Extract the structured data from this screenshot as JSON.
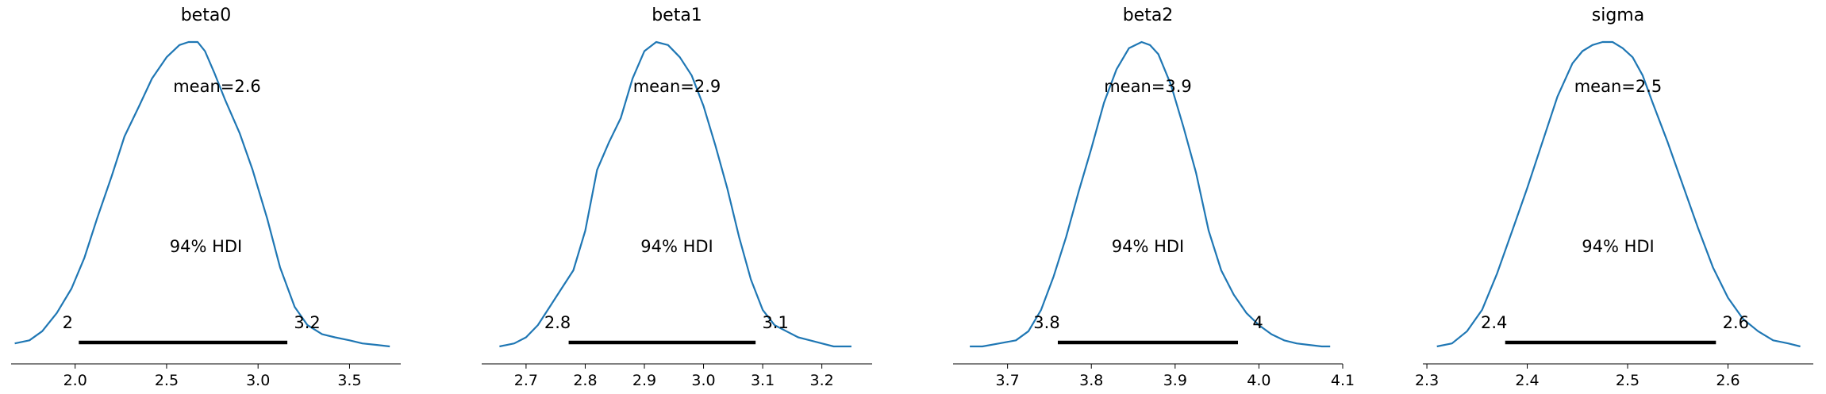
{
  "chart_data": [
    {
      "type": "area",
      "title": "beta0",
      "mean_label": "mean=2.6",
      "hdi_label": "94% HDI",
      "hdi": [
        2.02,
        3.16
      ],
      "hdi_low_label": "2",
      "hdi_high_label": "3.2",
      "xlim": [
        1.65,
        3.78
      ],
      "xticks": [
        2.0,
        2.5,
        3.0,
        3.5
      ],
      "xtick_labels": [
        "2.0",
        "2.5",
        "3.0",
        "3.5"
      ],
      "color": "#1f77b4",
      "density": {
        "x": [
          1.67,
          1.75,
          1.82,
          1.9,
          1.98,
          2.05,
          2.12,
          2.2,
          2.27,
          2.35,
          2.42,
          2.5,
          2.57,
          2.62,
          2.67,
          2.71,
          2.76,
          2.82,
          2.9,
          2.97,
          3.05,
          3.12,
          3.2,
          3.27,
          3.35,
          3.42,
          3.5,
          3.57,
          3.65,
          3.72
        ],
        "y": [
          0.01,
          0.02,
          0.05,
          0.11,
          0.19,
          0.29,
          0.42,
          0.56,
          0.69,
          0.79,
          0.88,
          0.95,
          0.99,
          1.0,
          1.0,
          0.97,
          0.9,
          0.81,
          0.7,
          0.58,
          0.42,
          0.26,
          0.13,
          0.07,
          0.04,
          0.03,
          0.02,
          0.01,
          0.005,
          0.0
        ]
      }
    },
    {
      "type": "area",
      "title": "beta1",
      "mean_label": "mean=2.9",
      "hdi_label": "94% HDI",
      "hdi": [
        2.772,
        3.088
      ],
      "hdi_low_label": "2.8",
      "hdi_high_label": "3.1",
      "xlim": [
        2.625,
        3.285
      ],
      "xticks": [
        2.7,
        2.8,
        2.9,
        3.0,
        3.1,
        3.2
      ],
      "xtick_labels": [
        "2.7",
        "2.8",
        "2.9",
        "3.0",
        "3.1",
        "3.2"
      ],
      "color": "#1f77b4",
      "density": {
        "x": [
          2.655,
          2.68,
          2.7,
          2.72,
          2.74,
          2.76,
          2.78,
          2.8,
          2.82,
          2.84,
          2.86,
          2.88,
          2.9,
          2.92,
          2.94,
          2.96,
          2.98,
          3.0,
          3.02,
          3.04,
          3.06,
          3.08,
          3.1,
          3.12,
          3.14,
          3.16,
          3.18,
          3.2,
          3.22,
          3.25
        ],
        "y": [
          0.0,
          0.01,
          0.03,
          0.07,
          0.13,
          0.19,
          0.25,
          0.38,
          0.58,
          0.67,
          0.75,
          0.88,
          0.97,
          1.0,
          0.99,
          0.95,
          0.89,
          0.79,
          0.66,
          0.52,
          0.36,
          0.22,
          0.12,
          0.07,
          0.05,
          0.03,
          0.02,
          0.01,
          0.0,
          0.0
        ]
      }
    },
    {
      "type": "area",
      "title": "beta2",
      "mean_label": "mean=3.9",
      "hdi_label": "94% HDI",
      "hdi": [
        3.76,
        3.975
      ],
      "hdi_low_label": "3.8",
      "hdi_high_label": "4",
      "xlim": [
        3.635,
        4.1
      ],
      "xticks": [
        3.7,
        3.8,
        3.9,
        4.0,
        4.1
      ],
      "xtick_labels": [
        "3.7",
        "3.8",
        "3.9",
        "4.0",
        "4.1"
      ],
      "color": "#1f77b4",
      "density": {
        "x": [
          3.655,
          3.67,
          3.69,
          3.71,
          3.725,
          3.74,
          3.755,
          3.77,
          3.785,
          3.8,
          3.815,
          3.83,
          3.845,
          3.86,
          3.87,
          3.88,
          3.895,
          3.91,
          3.925,
          3.94,
          3.955,
          3.97,
          3.985,
          4.0,
          4.015,
          4.03,
          4.045,
          4.06,
          4.075,
          4.085
        ],
        "y": [
          0.0,
          0.0,
          0.01,
          0.02,
          0.05,
          0.12,
          0.23,
          0.36,
          0.51,
          0.65,
          0.8,
          0.91,
          0.98,
          1.0,
          0.99,
          0.96,
          0.86,
          0.72,
          0.57,
          0.38,
          0.25,
          0.17,
          0.11,
          0.07,
          0.04,
          0.02,
          0.01,
          0.005,
          0.0,
          0.0
        ]
      }
    },
    {
      "type": "area",
      "title": "sigma",
      "mean_label": "mean=2.5",
      "hdi_label": "94% HDI",
      "hdi": [
        2.378,
        2.588
      ],
      "hdi_low_label": "2.4",
      "hdi_high_label": "2.6",
      "xlim": [
        2.296,
        2.685
      ],
      "xticks": [
        2.3,
        2.4,
        2.5,
        2.6
      ],
      "xtick_labels": [
        "2.3",
        "2.4",
        "2.5",
        "2.6"
      ],
      "color": "#1f77b4",
      "density": {
        "x": [
          2.31,
          2.325,
          2.34,
          2.355,
          2.37,
          2.385,
          2.4,
          2.415,
          2.43,
          2.445,
          2.455,
          2.465,
          2.475,
          2.485,
          2.495,
          2.505,
          2.515,
          2.525,
          2.54,
          2.555,
          2.57,
          2.585,
          2.6,
          2.615,
          2.63,
          2.645,
          2.66,
          2.672
        ],
        "y": [
          0.0,
          0.01,
          0.05,
          0.12,
          0.24,
          0.38,
          0.52,
          0.67,
          0.82,
          0.93,
          0.97,
          0.99,
          1.0,
          1.0,
          0.98,
          0.95,
          0.89,
          0.8,
          0.67,
          0.53,
          0.39,
          0.26,
          0.16,
          0.09,
          0.05,
          0.02,
          0.01,
          0.0
        ]
      }
    }
  ]
}
